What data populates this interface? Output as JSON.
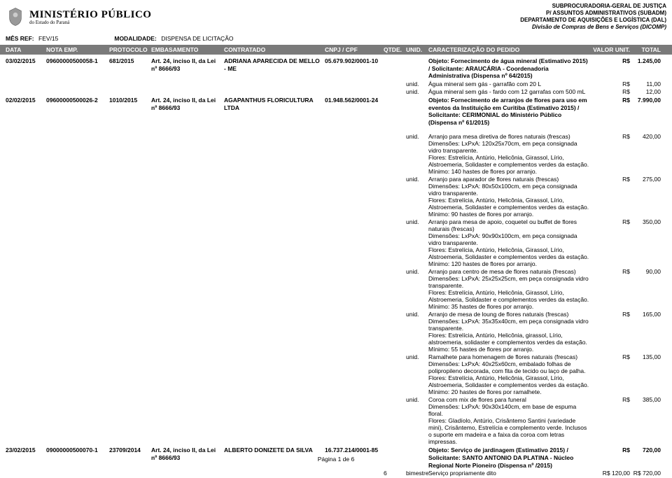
{
  "header": {
    "title": "MINISTÉRIO PÚBLICO",
    "subtitle": "do Estado do Paraná",
    "right_lines": {
      "l1": "SUBPROCURADORIA-GERAL DE JUSTIÇA",
      "l2": "P/ ASSUNTOS ADMINISTRATIVOS (SUBADM)",
      "l3": "DEPARTAMENTO DE AQUISIÇÕES E LOGÍSTICA (DAL)",
      "l4": "Divisão de Compras de Bens e Serviços (DICOMP)"
    },
    "ref": {
      "mes_lbl": "MÊS REF:",
      "mes_val": "FEV/15",
      "mod_lbl": "MODALIDADE:",
      "mod_val": "DISPENSA DE LICITAÇÃO"
    },
    "cols": {
      "c1": "DATA",
      "c2": "NOTA EMP.",
      "c3": "PROTOCOLO",
      "c4": "EMBASAMENTO",
      "c5": "CONTRATADO",
      "c6": "CNPJ / CPF",
      "c7": "QTDE.",
      "c8": "UNID.",
      "c9": "CARACTERIZAÇÃO DO PEDIDO",
      "c10": "VALOR UNIT.",
      "c11": "TOTAL"
    }
  },
  "rows": [
    {
      "data": "03/02/2015",
      "nota": "09600000500058-1",
      "protocolo": "681/2015",
      "embasamento": "Art. 24, inciso II, da Lei nº 8666/93",
      "contratado": "ADRIANA APARECIDA DE MELLO - ME",
      "cnpj": "05.679.902/0001-10",
      "objeto": "Objeto: Fornecimento de água mineral (Estimativo 2015) / Solicitante: ARAUCÁRIA - Coordenadoria Administrativa (Dispensa nº 64/2015)",
      "cur": "R$",
      "total": "1.245,00",
      "subs": [
        {
          "unit": "unid.",
          "desc": "Água mineral sem gás - garrafão com 20 L",
          "cur": "R$",
          "val": "11,00"
        },
        {
          "unit": "unid.",
          "desc": "Água mineral sem gás - fardo com 12 garrafas com 500 mL",
          "cur": "R$",
          "val": "12,00"
        }
      ]
    },
    {
      "data": "02/02/2015",
      "nota": "09600000500026-2",
      "protocolo": "1010/2015",
      "embasamento": "Art. 24, inciso II, da Lei nº 8666/93",
      "contratado": "AGAPANTHUS FLORICULTURA LTDA",
      "cnpj": "01.948.562/0001-24",
      "objeto": "Objeto: Fornecimento de arranjos de flores para uso em eventos da Instituição em Curitiba (Estimativo 2015) / Solicitante: CERIMONIAL do Ministério Público (Dispensa nº 61/2015)",
      "cur": "R$",
      "total": "7.990,00",
      "subs": [
        {
          "unit": "unid.",
          "desc": "Arranjo para mesa diretiva de flores naturais (frescas)\nDimensões: LxPxA: 120x25x70cm, em peça consignada vidro transparente.\nFlores: Estrelícia, Antúrio, Helicônia, Girassol, Lírio, Alstroemeria, Solidaster e complementos verdes da estação.\nMínimo: 140 hastes de flores por arranjo.",
          "cur": "R$",
          "val": "420,00"
        },
        {
          "unit": "unid.",
          "desc": "Arranjo para aparador de flores naturais (frescas)\nDimensões: LxPxA: 80x50x100cm, em peça consignada vidro transparente.\nFlores: Estrelícia, Antúrio, Helicônia, Girassol, Lírio, Alstroemeria, Solidaster e complementos verdes da estação.\nMínimo: 90 hastes de flores por arranjo.",
          "cur": "R$",
          "val": "275,00"
        },
        {
          "unit": "unid.",
          "desc": "Arranjo para mesa de apoio, coquetel ou buffet de flores naturais (frescas)\nDimensões: LxPxA: 90x90x100cm, em peça consignada vidro transparente.\nFlores: Estrelícia, Antúrio, Helicônia, Girassol, Lírio, Alstroemeria, Solidaster e complementos verdes da estação.\nMínimo: 120 hastes de flores por arranjo.",
          "cur": "R$",
          "val": "350,00"
        },
        {
          "unit": "unid.",
          "desc": "Arranjo para centro de mesa de flores naturais (frescas)\nDimensões: LxPxA: 25x25x25cm, em peça consignada vidro transparente.\nFlores: Estrelícia, Antúrio, Helicônia, Girassol, Lírio, Alstroemeria, Solidaster e complementos verdes da estação.\nMínimo: 35 hastes de flores por arranjo.",
          "cur": "R$",
          "val": "90,00"
        },
        {
          "unit": "unid.",
          "desc": "Arranjo de mesa de loung de flores naturais (frescas)\nDimensões: LxPxA: 35x35x40cm, em peça consignada vidro transparente.\nFlores: Estrelícia, Antúrio, Helicônia, girassol, Lírio, alstroemeria, solidaster e complementos verdes da estação.\nMínimo: 55 hastes de flores por arranjo.",
          "cur": "R$",
          "val": "165,00"
        },
        {
          "unit": "unid.",
          "desc": "Ramalhete para homenagem de flores naturais (frescas)\nDimensões: LxPxA: 40x25x60cm, embalado folhas de polipropileno decorada, com fita de tecido ou laço de palha.\nFlores: Estrelícia, Antúrio, Helicônia, Girassol, Lírio, Alstroemeria, Solidaster e complementos verdes da estação.\nMínimo: 20 hastes de flores por ramalhete.",
          "cur": "R$",
          "val": "135,00"
        },
        {
          "unit": "unid.",
          "desc": "Coroa com mix de flores para funeral\nDimensões: LxPxA: 90x30x140cm, em base de espuma floral.\nFlores: Gladíolo, Antúrio, Crisântemo Santini (variedade mini), Crisântemo, Estrelícia e complemento verde. Inclusos o suporte em madeira e a faixa da coroa com letras impressas.",
          "cur": "R$",
          "val": "385,00"
        }
      ]
    },
    {
      "data": "23/02/2015",
      "nota": "09000000500070-1",
      "protocolo": "23709/2014",
      "embasamento": "Art. 24, inciso II, da Lei nº 8666/93",
      "contratado": "ALBERTO DONIZETE DA SILVA",
      "cnpj": "16.737.214/0001-85",
      "objeto": "Objeto: Serviço de jardinagem (Estimativo 2015) / Solicitante: SANTO ANTONIO DA PLATINA - Núcleo Regional Norte Pioneiro (Dispensa nº  /2015)",
      "cur": "R$",
      "total": "720,00",
      "subs": [
        {
          "qt": "6",
          "unit": "bimestre",
          "desc": "Serviço propriamente dito",
          "cur": "R$",
          "val": "120,00",
          "tcur": "R$",
          "tval": "720,00"
        }
      ]
    }
  ],
  "footer": "Página 1 de 6"
}
